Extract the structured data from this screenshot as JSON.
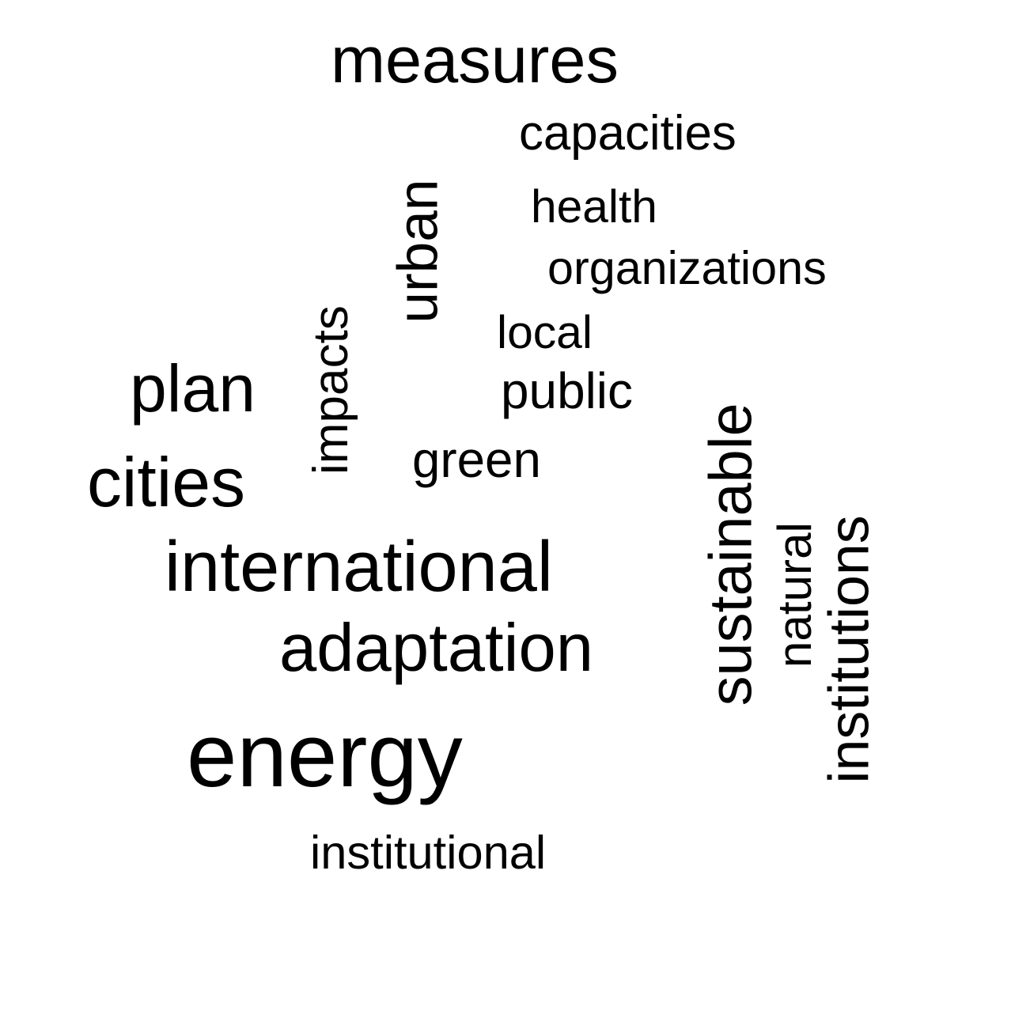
{
  "text_color": "#000000",
  "background": "#ffffff",
  "words": [
    {
      "text": "measures",
      "orientation": "horizontal"
    },
    {
      "text": "capacities",
      "orientation": "horizontal"
    },
    {
      "text": "urban",
      "orientation": "vertical"
    },
    {
      "text": "health",
      "orientation": "horizontal"
    },
    {
      "text": "organizations",
      "orientation": "horizontal"
    },
    {
      "text": "local",
      "orientation": "horizontal"
    },
    {
      "text": "impacts",
      "orientation": "vertical"
    },
    {
      "text": "plan",
      "orientation": "horizontal"
    },
    {
      "text": "public",
      "orientation": "horizontal"
    },
    {
      "text": "sustainable",
      "orientation": "vertical"
    },
    {
      "text": "green",
      "orientation": "horizontal"
    },
    {
      "text": "cities",
      "orientation": "horizontal"
    },
    {
      "text": "institutions",
      "orientation": "vertical"
    },
    {
      "text": "natural",
      "orientation": "vertical"
    },
    {
      "text": "international",
      "orientation": "horizontal"
    },
    {
      "text": "adaptation",
      "orientation": "horizontal"
    },
    {
      "text": "energy",
      "orientation": "horizontal"
    },
    {
      "text": "institutional",
      "orientation": "horizontal"
    }
  ]
}
